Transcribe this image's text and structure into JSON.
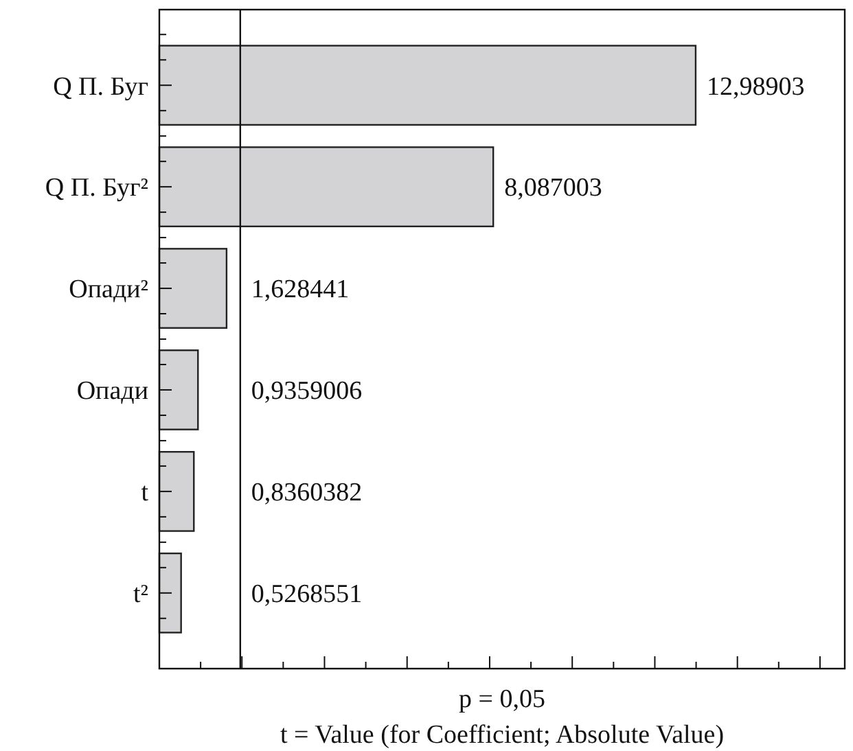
{
  "chart_data": {
    "type": "bar",
    "orientation": "horizontal",
    "categories": [
      "Q П. Буг",
      "Q П. Буг²",
      "Опади²",
      "Опади",
      "t",
      "t²"
    ],
    "values": [
      12.98903,
      8.087003,
      1.628441,
      0.9359006,
      0.8360382,
      0.5268551
    ],
    "value_labels": [
      "12,98903",
      "8,087003",
      "1,628441",
      "0,9359006",
      "0,8360382",
      "0,5268551"
    ],
    "color": "#d3d3d5",
    "xlabel": "t = Value (for Coefficient; Absolute Value)",
    "xlim": [
      0,
      16.6
    ],
    "xticks": [
      {
        "value": 1,
        "label": null
      },
      {
        "value": 2,
        "label": null
      },
      {
        "value": 3,
        "label": null
      },
      {
        "value": 4,
        "label": null
      },
      {
        "value": 5,
        "label": null
      },
      {
        "value": 6,
        "label": null
      },
      {
        "value": 7,
        "label": null
      },
      {
        "value": 8,
        "label": null
      },
      {
        "value": 9,
        "label": null
      },
      {
        "value": 10,
        "label": null
      },
      {
        "value": 11,
        "label": null
      },
      {
        "value": 12,
        "label": null
      },
      {
        "value": 13,
        "label": null
      },
      {
        "value": 14,
        "label": null
      },
      {
        "value": 15,
        "label": null
      },
      {
        "value": 16,
        "label": null
      }
    ],
    "tick_labels": "y",
    "ref_lines": [
      {
        "axis": "x",
        "value": 1.96
      }
    ],
    "annotations": [
      "p = 0,05"
    ]
  }
}
